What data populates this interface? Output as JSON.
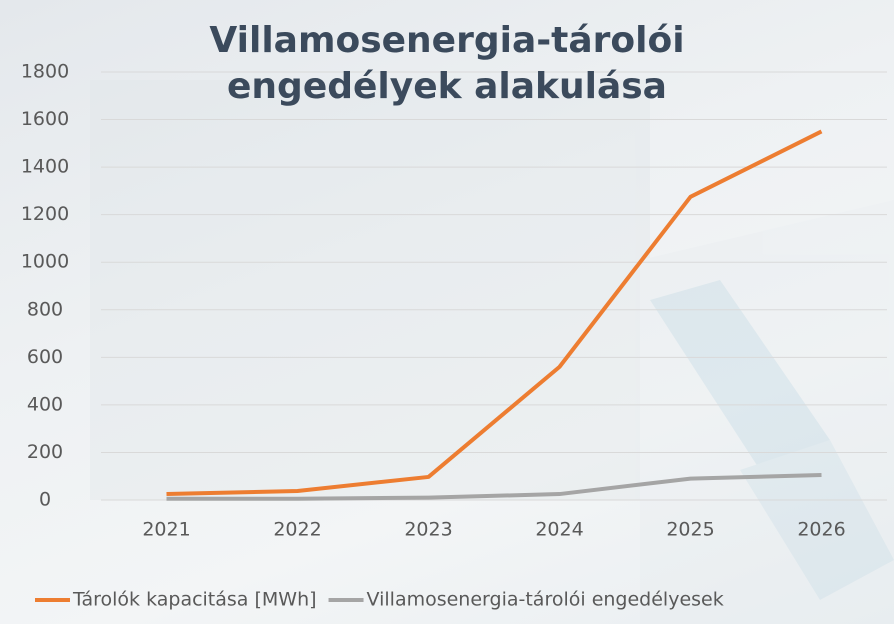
{
  "chart_data": {
    "type": "line",
    "title": "Villamosenergia-tárolói engedélyek alakulása",
    "categories": [
      "2021",
      "2022",
      "2023",
      "2024",
      "2025",
      "2026"
    ],
    "series": [
      {
        "name": "Tárolók kapacitása [MWh]",
        "color": "#ed7d31",
        "values": [
          25,
          38,
          97,
          560,
          1275,
          1550
        ]
      },
      {
        "name": "Villamosenergia-tárolói engedélyesek",
        "color": "#a5a5a5",
        "values": [
          5,
          5,
          10,
          25,
          90,
          105
        ]
      }
    ],
    "ylim": [
      0,
      1800
    ],
    "yticks": [
      0,
      200,
      400,
      600,
      800,
      1000,
      1200,
      1400,
      1600,
      1800
    ],
    "grid": true,
    "legend": "bottom"
  }
}
